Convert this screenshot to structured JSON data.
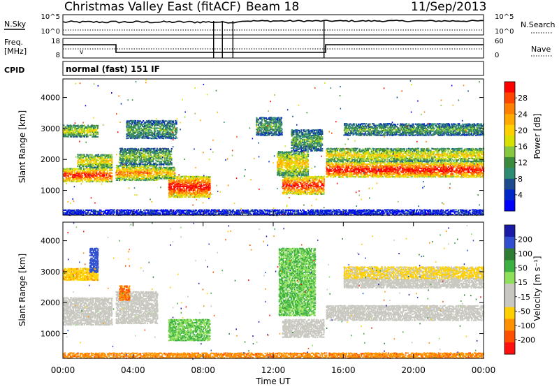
{
  "header": {
    "title": "Christmas Valley East (fitACF)",
    "beam": "Beam 18",
    "date": "11/Sep/2013"
  },
  "labels": {
    "nsky": "N.Sky",
    "nsearch": "N.Search",
    "freq": "Freq.",
    "freq_unit": "[MHz]",
    "nave": "Nave",
    "cpid": "CPID",
    "cpid_value": "normal (fast) 151 IF",
    "nsky_ticks": [
      "10^5",
      "10^0"
    ],
    "nsearch_ticks": [
      "10^5",
      "10^0"
    ],
    "freq_ticks": [
      "18",
      "8"
    ],
    "nave_ticks": [
      "60",
      "0"
    ]
  },
  "chart_data": [
    {
      "type": "heatmap",
      "name": "power",
      "xlabel": "Time UT",
      "ylabel": "Slant Range [km]",
      "x_ticks": [
        "00:00",
        "04:00",
        "08:00",
        "12:00",
        "16:00",
        "20:00",
        "00:00"
      ],
      "y_ticks": [
        "1000",
        "2000",
        "3000",
        "4000"
      ],
      "ylim": [
        200,
        4600
      ],
      "colorbar": {
        "label": "Power [dB]",
        "ticks": [
          "28",
          "24",
          "20",
          "16",
          "12",
          "8",
          "4"
        ],
        "colors": [
          "#ff0000",
          "#ff4500",
          "#ff7f00",
          "#ffaa00",
          "#ffd000",
          "#d8e000",
          "#88c840",
          "#3c8a3c",
          "#2e8b74",
          "#1c4c8c",
          "#0028c8",
          "#0000ff"
        ]
      },
      "bands": [
        {
          "t0": 0.0,
          "t1": 2.8,
          "r0": 1300,
          "r1": 1750,
          "level": 0.85
        },
        {
          "t0": 0.8,
          "t1": 2.8,
          "r0": 1750,
          "r1": 2200,
          "level": 0.55
        },
        {
          "t0": 0.0,
          "t1": 2.0,
          "r0": 2750,
          "r1": 3150,
          "level": 0.5
        },
        {
          "t0": 3.0,
          "t1": 5.4,
          "r0": 1350,
          "r1": 1850,
          "level": 0.7
        },
        {
          "t0": 3.2,
          "t1": 6.2,
          "r0": 1850,
          "r1": 2400,
          "level": 0.4
        },
        {
          "t0": 3.6,
          "t1": 6.5,
          "r0": 2700,
          "r1": 3300,
          "level": 0.35
        },
        {
          "t0": 6.0,
          "t1": 8.4,
          "r0": 800,
          "r1": 1500,
          "level": 0.9
        },
        {
          "t0": 5.2,
          "t1": 6.4,
          "r0": 1400,
          "r1": 1800,
          "level": 0.6
        },
        {
          "t0": 11.0,
          "t1": 12.5,
          "r0": 2800,
          "r1": 3400,
          "level": 0.35
        },
        {
          "t0": 12.5,
          "t1": 14.9,
          "r0": 900,
          "r1": 1500,
          "level": 0.85
        },
        {
          "t0": 12.2,
          "t1": 14.0,
          "r0": 1500,
          "r1": 2300,
          "level": 0.6
        },
        {
          "t0": 13.0,
          "t1": 14.8,
          "r0": 2300,
          "r1": 3000,
          "level": 0.35
        },
        {
          "t0": 15.0,
          "t1": 24.0,
          "r0": 1450,
          "r1": 1950,
          "level": 0.9
        },
        {
          "t0": 15.0,
          "t1": 24.0,
          "r0": 1950,
          "r1": 2400,
          "level": 0.55
        },
        {
          "t0": 16.0,
          "t1": 24.0,
          "r0": 2800,
          "r1": 3200,
          "level": 0.35
        },
        {
          "t0": 0.0,
          "t1": 24.0,
          "r0": 230,
          "r1": 420,
          "level": 0.1
        }
      ]
    },
    {
      "type": "heatmap",
      "name": "velocity",
      "xlabel": "Time UT",
      "ylabel": "Slant Range [km]",
      "x_ticks": [
        "00:00",
        "04:00",
        "08:00",
        "12:00",
        "16:00",
        "20:00",
        "00:00"
      ],
      "y_ticks": [
        "1000",
        "2000",
        "3000",
        "4000"
      ],
      "ylim": [
        200,
        4600
      ],
      "colorbar": {
        "label": "Velocity [m s⁻¹]",
        "ticks": [
          "200",
          "100",
          "50",
          "15",
          "-15",
          "-50",
          "-100",
          "-200"
        ],
        "colors": [
          "#1a1aa8",
          "#2f4fd0",
          "#2e7d32",
          "#3cb043",
          "#8ee05a",
          "#c8c8c0",
          "#c8c8c0",
          "#ffd000",
          "#ff9000",
          "#ff5000",
          "#ff1010"
        ]
      },
      "bands": [
        {
          "t0": 0.0,
          "t1": 2.8,
          "r0": 1300,
          "r1": 2200,
          "v": 0
        },
        {
          "t0": 0.0,
          "t1": 2.0,
          "r0": 2750,
          "r1": 3150,
          "v": -30
        },
        {
          "t0": 1.5,
          "t1": 2.0,
          "r0": 3000,
          "r1": 3800,
          "v": 180
        },
        {
          "t0": 3.0,
          "t1": 5.4,
          "r0": 1350,
          "r1": 2400,
          "v": 0
        },
        {
          "t0": 3.2,
          "t1": 3.8,
          "r0": 2100,
          "r1": 2600,
          "v": -70
        },
        {
          "t0": 6.0,
          "t1": 8.4,
          "r0": 800,
          "r1": 1500,
          "v": 40
        },
        {
          "t0": 12.3,
          "t1": 14.4,
          "r0": 1600,
          "r1": 3800,
          "v": 40
        },
        {
          "t0": 12.5,
          "t1": 14.9,
          "r0": 900,
          "r1": 1500,
          "v": 0
        },
        {
          "t0": 15.0,
          "t1": 24.0,
          "r0": 1450,
          "r1": 1950,
          "v": 0
        },
        {
          "t0": 16.0,
          "t1": 24.0,
          "r0": 2500,
          "r1": 2800,
          "v": 0
        },
        {
          "t0": 16.0,
          "t1": 24.0,
          "r0": 2800,
          "r1": 3200,
          "v": -20
        },
        {
          "t0": 0.0,
          "t1": 24.0,
          "r0": 230,
          "r1": 420,
          "v": -60
        }
      ]
    }
  ]
}
